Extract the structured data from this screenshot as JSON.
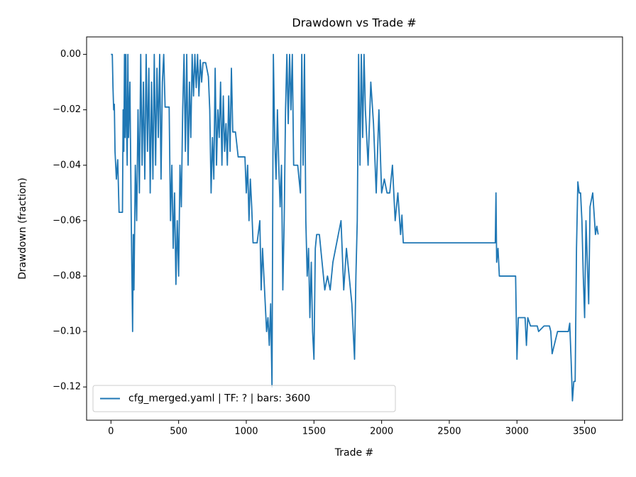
{
  "chart_data": {
    "type": "line",
    "title": "Drawdown vs Trade #",
    "xlabel": "Trade #",
    "ylabel": "Drawdown (fraction)",
    "xlim": [
      -180,
      3780
    ],
    "ylim": [
      -0.132,
      0.0063
    ],
    "xticks": [
      0,
      500,
      1000,
      1500,
      2000,
      2500,
      3000,
      3500
    ],
    "yticks": [
      {
        "value": -0.12,
        "label": "−0.12"
      },
      {
        "value": -0.1,
        "label": "−0.10"
      },
      {
        "value": -0.08,
        "label": "−0.08"
      },
      {
        "value": -0.06,
        "label": "−0.06"
      },
      {
        "value": -0.04,
        "label": "−0.04"
      },
      {
        "value": -0.02,
        "label": "−0.02"
      },
      {
        "value": 0,
        "label": "0.00"
      }
    ],
    "legend": "lower left",
    "series": [
      {
        "name": "cfg_merged.yaml | TF: ? | bars: 3600",
        "color": "#1f77b4",
        "x": [
          0,
          10,
          15,
          20,
          25,
          30,
          35,
          40,
          50,
          60,
          85,
          90,
          95,
          100,
          105,
          110,
          115,
          120,
          125,
          130,
          140,
          150,
          155,
          160,
          165,
          170,
          180,
          190,
          200,
          210,
          220,
          230,
          240,
          250,
          260,
          270,
          280,
          290,
          300,
          310,
          320,
          330,
          340,
          350,
          360,
          370,
          380,
          390,
          400,
          430,
          440,
          450,
          460,
          470,
          480,
          490,
          500,
          510,
          520,
          530,
          540,
          550,
          560,
          570,
          580,
          590,
          600,
          610,
          620,
          630,
          640,
          650,
          660,
          670,
          680,
          700,
          720,
          730,
          740,
          750,
          760,
          770,
          780,
          790,
          800,
          810,
          820,
          830,
          840,
          850,
          860,
          870,
          880,
          890,
          900,
          920,
          940,
          950,
          990,
          1000,
          1010,
          1020,
          1030,
          1040,
          1050,
          1060,
          1080,
          1100,
          1110,
          1120,
          1130,
          1140,
          1150,
          1160,
          1170,
          1180,
          1190,
          1195,
          1200,
          1210,
          1220,
          1230,
          1240,
          1250,
          1260,
          1270,
          1280,
          1290,
          1300,
          1310,
          1320,
          1330,
          1340,
          1350,
          1360,
          1380,
          1400,
          1410,
          1420,
          1430,
          1440,
          1450,
          1460,
          1470,
          1480,
          1490,
          1500,
          1510,
          1520,
          1540,
          1560,
          1580,
          1600,
          1620,
          1640,
          1660,
          1680,
          1700,
          1720,
          1740,
          1760,
          1780,
          1800,
          1810,
          1820,
          1830,
          1840,
          1850,
          1860,
          1870,
          1880,
          1900,
          1920,
          1940,
          1960,
          1980,
          2000,
          2020,
          2040,
          2060,
          2080,
          2100,
          2120,
          2140,
          2150,
          2160,
          2200,
          2500,
          2840,
          2845,
          2850,
          2860,
          2870,
          2900,
          2950,
          2990,
          3000,
          3010,
          3020,
          3060,
          3070,
          3080,
          3100,
          3150,
          3160,
          3200,
          3240,
          3250,
          3260,
          3300,
          3340,
          3380,
          3390,
          3400,
          3410,
          3420,
          3430,
          3440,
          3450,
          3460,
          3470,
          3480,
          3490,
          3500,
          3510,
          3520,
          3530,
          3540,
          3560,
          3580,
          3590,
          3600
        ],
        "values": [
          0,
          0,
          -0.012,
          -0.02,
          -0.018,
          -0.035,
          -0.04,
          -0.045,
          -0.038,
          -0.057,
          -0.057,
          -0.02,
          -0.035,
          0,
          -0.03,
          0,
          -0.025,
          -0.04,
          0,
          -0.03,
          -0.01,
          -0.06,
          -0.08,
          -0.1,
          -0.065,
          -0.085,
          -0.04,
          -0.06,
          -0.02,
          -0.05,
          0,
          -0.04,
          -0.01,
          -0.045,
          0,
          -0.035,
          -0.005,
          -0.05,
          -0.01,
          -0.045,
          0,
          -0.04,
          -0.005,
          -0.03,
          0,
          -0.045,
          -0.01,
          0,
          -0.019,
          -0.019,
          -0.06,
          -0.04,
          -0.07,
          -0.05,
          -0.083,
          -0.06,
          -0.08,
          -0.04,
          -0.055,
          -0.02,
          0,
          -0.035,
          0,
          -0.04,
          -0.01,
          -0.03,
          0,
          -0.015,
          0,
          -0.012,
          0,
          -0.015,
          -0.002,
          -0.01,
          -0.003,
          -0.003,
          -0.008,
          -0.02,
          -0.05,
          -0.03,
          -0.045,
          -0.005,
          -0.04,
          -0.02,
          -0.03,
          -0.01,
          -0.04,
          -0.015,
          -0.035,
          -0.025,
          -0.04,
          -0.015,
          -0.035,
          -0.005,
          -0.028,
          -0.028,
          -0.037,
          -0.037,
          -0.037,
          -0.05,
          -0.04,
          -0.06,
          -0.045,
          -0.055,
          -0.068,
          -0.068,
          -0.068,
          -0.06,
          -0.085,
          -0.07,
          -0.08,
          -0.09,
          -0.1,
          -0.095,
          -0.105,
          -0.09,
          -0.12,
          -0.06,
          0,
          -0.03,
          -0.045,
          -0.02,
          -0.04,
          -0.055,
          -0.04,
          -0.085,
          -0.06,
          -0.02,
          0,
          -0.025,
          0,
          -0.02,
          0,
          -0.04,
          -0.04,
          -0.04,
          -0.05,
          0,
          -0.04,
          0,
          -0.06,
          -0.08,
          -0.07,
          -0.095,
          -0.075,
          -0.1,
          -0.11,
          -0.07,
          -0.065,
          -0.065,
          -0.075,
          -0.085,
          -0.08,
          -0.085,
          -0.075,
          -0.07,
          -0.065,
          -0.06,
          -0.085,
          -0.07,
          -0.08,
          -0.09,
          -0.11,
          -0.08,
          -0.06,
          0,
          -0.04,
          0,
          -0.03,
          0,
          -0.02,
          -0.04,
          -0.01,
          -0.025,
          -0.05,
          -0.02,
          -0.05,
          -0.045,
          -0.05,
          -0.05,
          -0.04,
          -0.06,
          -0.05,
          -0.065,
          -0.058,
          -0.068,
          -0.068,
          -0.068,
          -0.068,
          -0.05,
          -0.075,
          -0.07,
          -0.08,
          -0.08,
          -0.08,
          -0.08,
          -0.11,
          -0.095,
          -0.095,
          -0.095,
          -0.105,
          -0.095,
          -0.098,
          -0.098,
          -0.1,
          -0.098,
          -0.098,
          -0.1,
          -0.108,
          -0.1,
          -0.1,
          -0.1,
          -0.097,
          -0.11,
          -0.125,
          -0.118,
          -0.118,
          -0.07,
          -0.046,
          -0.05,
          -0.05,
          -0.06,
          -0.08,
          -0.095,
          -0.06,
          -0.075,
          -0.09,
          -0.055,
          -0.05,
          -0.065,
          -0.062,
          -0.065
        ]
      }
    ]
  }
}
